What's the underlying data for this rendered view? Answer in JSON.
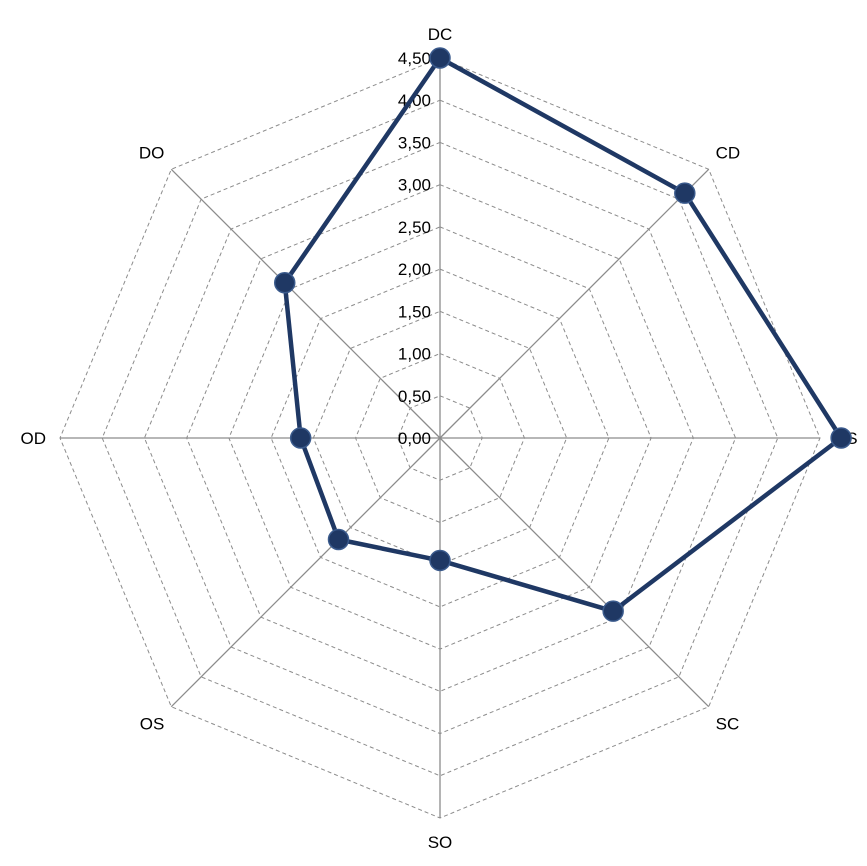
{
  "chart_data": {
    "type": "radar",
    "categories": [
      "DC",
      "CD",
      "CS",
      "SC",
      "SO",
      "OS",
      "OD",
      "DO"
    ],
    "series": [
      {
        "values": [
          4.5,
          4.1,
          4.75,
          2.9,
          1.45,
          1.7,
          1.65,
          2.6
        ]
      }
    ],
    "rlim": [
      0,
      4.5
    ],
    "r_ticks": [
      "0,00",
      "0,50",
      "1,00",
      "1,50",
      "2,00",
      "2,50",
      "3,00",
      "3,50",
      "4,00",
      "4,50"
    ],
    "grid": true,
    "legend": "none",
    "colors": {
      "series": "#1f3864",
      "grid": "#8c8c8c"
    }
  }
}
